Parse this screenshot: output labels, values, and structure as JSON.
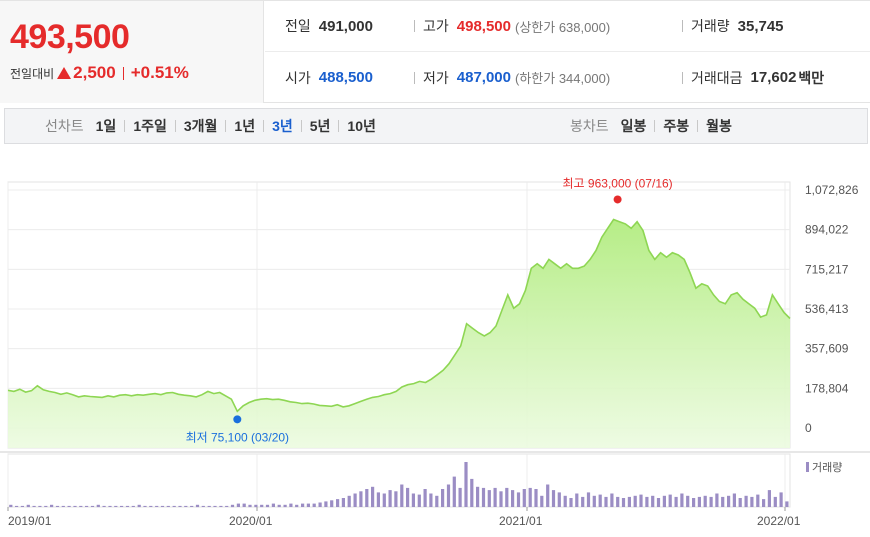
{
  "price": {
    "current": "493,500",
    "change_label": "전일대비",
    "change_value": "2,500",
    "change_percent": "+0.51%",
    "color_up": "#e52b2b"
  },
  "stats": {
    "prev_close": {
      "label": "전일",
      "value": "491,000"
    },
    "high": {
      "label": "고가",
      "value": "498,500",
      "limit_label": "(상한가 638,000)"
    },
    "volume": {
      "label": "거래량",
      "value": "35,745"
    },
    "open": {
      "label": "시가",
      "value": "488,500"
    },
    "low": {
      "label": "저가",
      "value": "487,000",
      "limit_label": "(하한가 344,000)"
    },
    "trade_value": {
      "label": "거래대금",
      "value": "17,602",
      "unit": "백만"
    }
  },
  "toolbar": {
    "line_chart_label": "선차트",
    "periods": [
      "1일",
      "1주일",
      "3개월",
      "1년",
      "3년",
      "5년",
      "10년"
    ],
    "active_period": "3년",
    "candle_chart_label": "봉차트",
    "candle_periods": [
      "일봉",
      "주봉",
      "월봉"
    ]
  },
  "chart_data": {
    "type": "area",
    "y_ticks": [
      "1,072,826",
      "894,022",
      "715,217",
      "536,413",
      "357,609",
      "178,804",
      "0"
    ],
    "ylim": [
      0,
      1072826
    ],
    "x_ticks": [
      "2019/01",
      "2020/01",
      "2021/01",
      "2022/01"
    ],
    "line_color": "#8ed653",
    "fill_color": "#c9f2a4",
    "high_annotation": "최고 963,000 (07/16)",
    "low_annotation": "최저 75,100 (03/20)",
    "volume_legend": "거래량",
    "series": [
      {
        "values": [
          170000,
          165000,
          175000,
          162000,
          168000,
          190000,
          172000,
          165000,
          160000,
          152000,
          158000,
          150000,
          140000,
          145000,
          142000,
          140000,
          138000,
          145000,
          140000,
          148000,
          150000,
          145000,
          150000,
          148000,
          152000,
          155000,
          150000,
          158000,
          160000,
          152000,
          148000,
          145000,
          140000,
          150000,
          165000,
          155000,
          160000,
          145000,
          130000,
          75100,
          100000,
          115000,
          125000,
          130000,
          132000,
          128000,
          130000,
          125000,
          118000,
          115000,
          110000,
          112000,
          108000,
          102000,
          100000,
          98000,
          105000,
          95000,
          100000,
          110000,
          120000,
          130000,
          138000,
          142000,
          150000,
          155000,
          165000,
          185000,
          195000,
          200000,
          210000,
          205000,
          220000,
          240000,
          260000,
          290000,
          330000,
          370000,
          470000,
          450000,
          430000,
          415000,
          430000,
          460000,
          530000,
          600000,
          540000,
          560000,
          620000,
          720000,
          740000,
          720000,
          760000,
          740000,
          720000,
          740000,
          720000,
          720000,
          730000,
          760000,
          800000,
          860000,
          900000,
          940000,
          930000,
          920000,
          900000,
          930000,
          890000,
          800000,
          760000,
          790000,
          770000,
          790000,
          780000,
          760000,
          700000,
          630000,
          650000,
          640000,
          600000,
          570000,
          560000,
          600000,
          610000,
          580000,
          560000,
          540000,
          500000,
          510000,
          600000,
          560000,
          520000,
          493500
        ]
      }
    ],
    "volume": [
      2,
      1,
      1,
      2,
      1,
      1,
      1,
      2,
      1,
      1,
      1,
      1,
      1,
      1,
      1,
      2,
      1,
      1,
      1,
      1,
      1,
      1,
      2,
      1,
      1,
      1,
      1,
      1,
      1,
      1,
      1,
      1,
      2,
      1,
      1,
      1,
      1,
      1,
      2,
      3,
      3,
      2,
      2,
      2,
      2,
      3,
      2,
      2,
      3,
      2,
      3,
      3,
      3,
      4,
      5,
      6,
      7,
      8,
      10,
      12,
      14,
      16,
      18,
      13,
      12,
      15,
      14,
      20,
      17,
      12,
      11,
      16,
      12,
      10,
      16,
      20,
      27,
      17,
      40,
      25,
      18,
      17,
      15,
      17,
      14,
      17,
      15,
      13,
      16,
      17,
      16,
      10,
      20,
      15,
      13,
      10,
      8,
      12,
      9,
      13,
      10,
      11,
      9,
      12,
      9,
      8,
      9,
      10,
      11,
      9,
      10,
      8,
      10,
      11,
      9,
      12,
      10,
      8,
      9,
      10,
      9,
      12,
      9,
      10,
      12,
      8,
      10,
      9,
      11,
      7,
      15,
      9,
      13,
      5
    ],
    "volume_max": 40
  }
}
